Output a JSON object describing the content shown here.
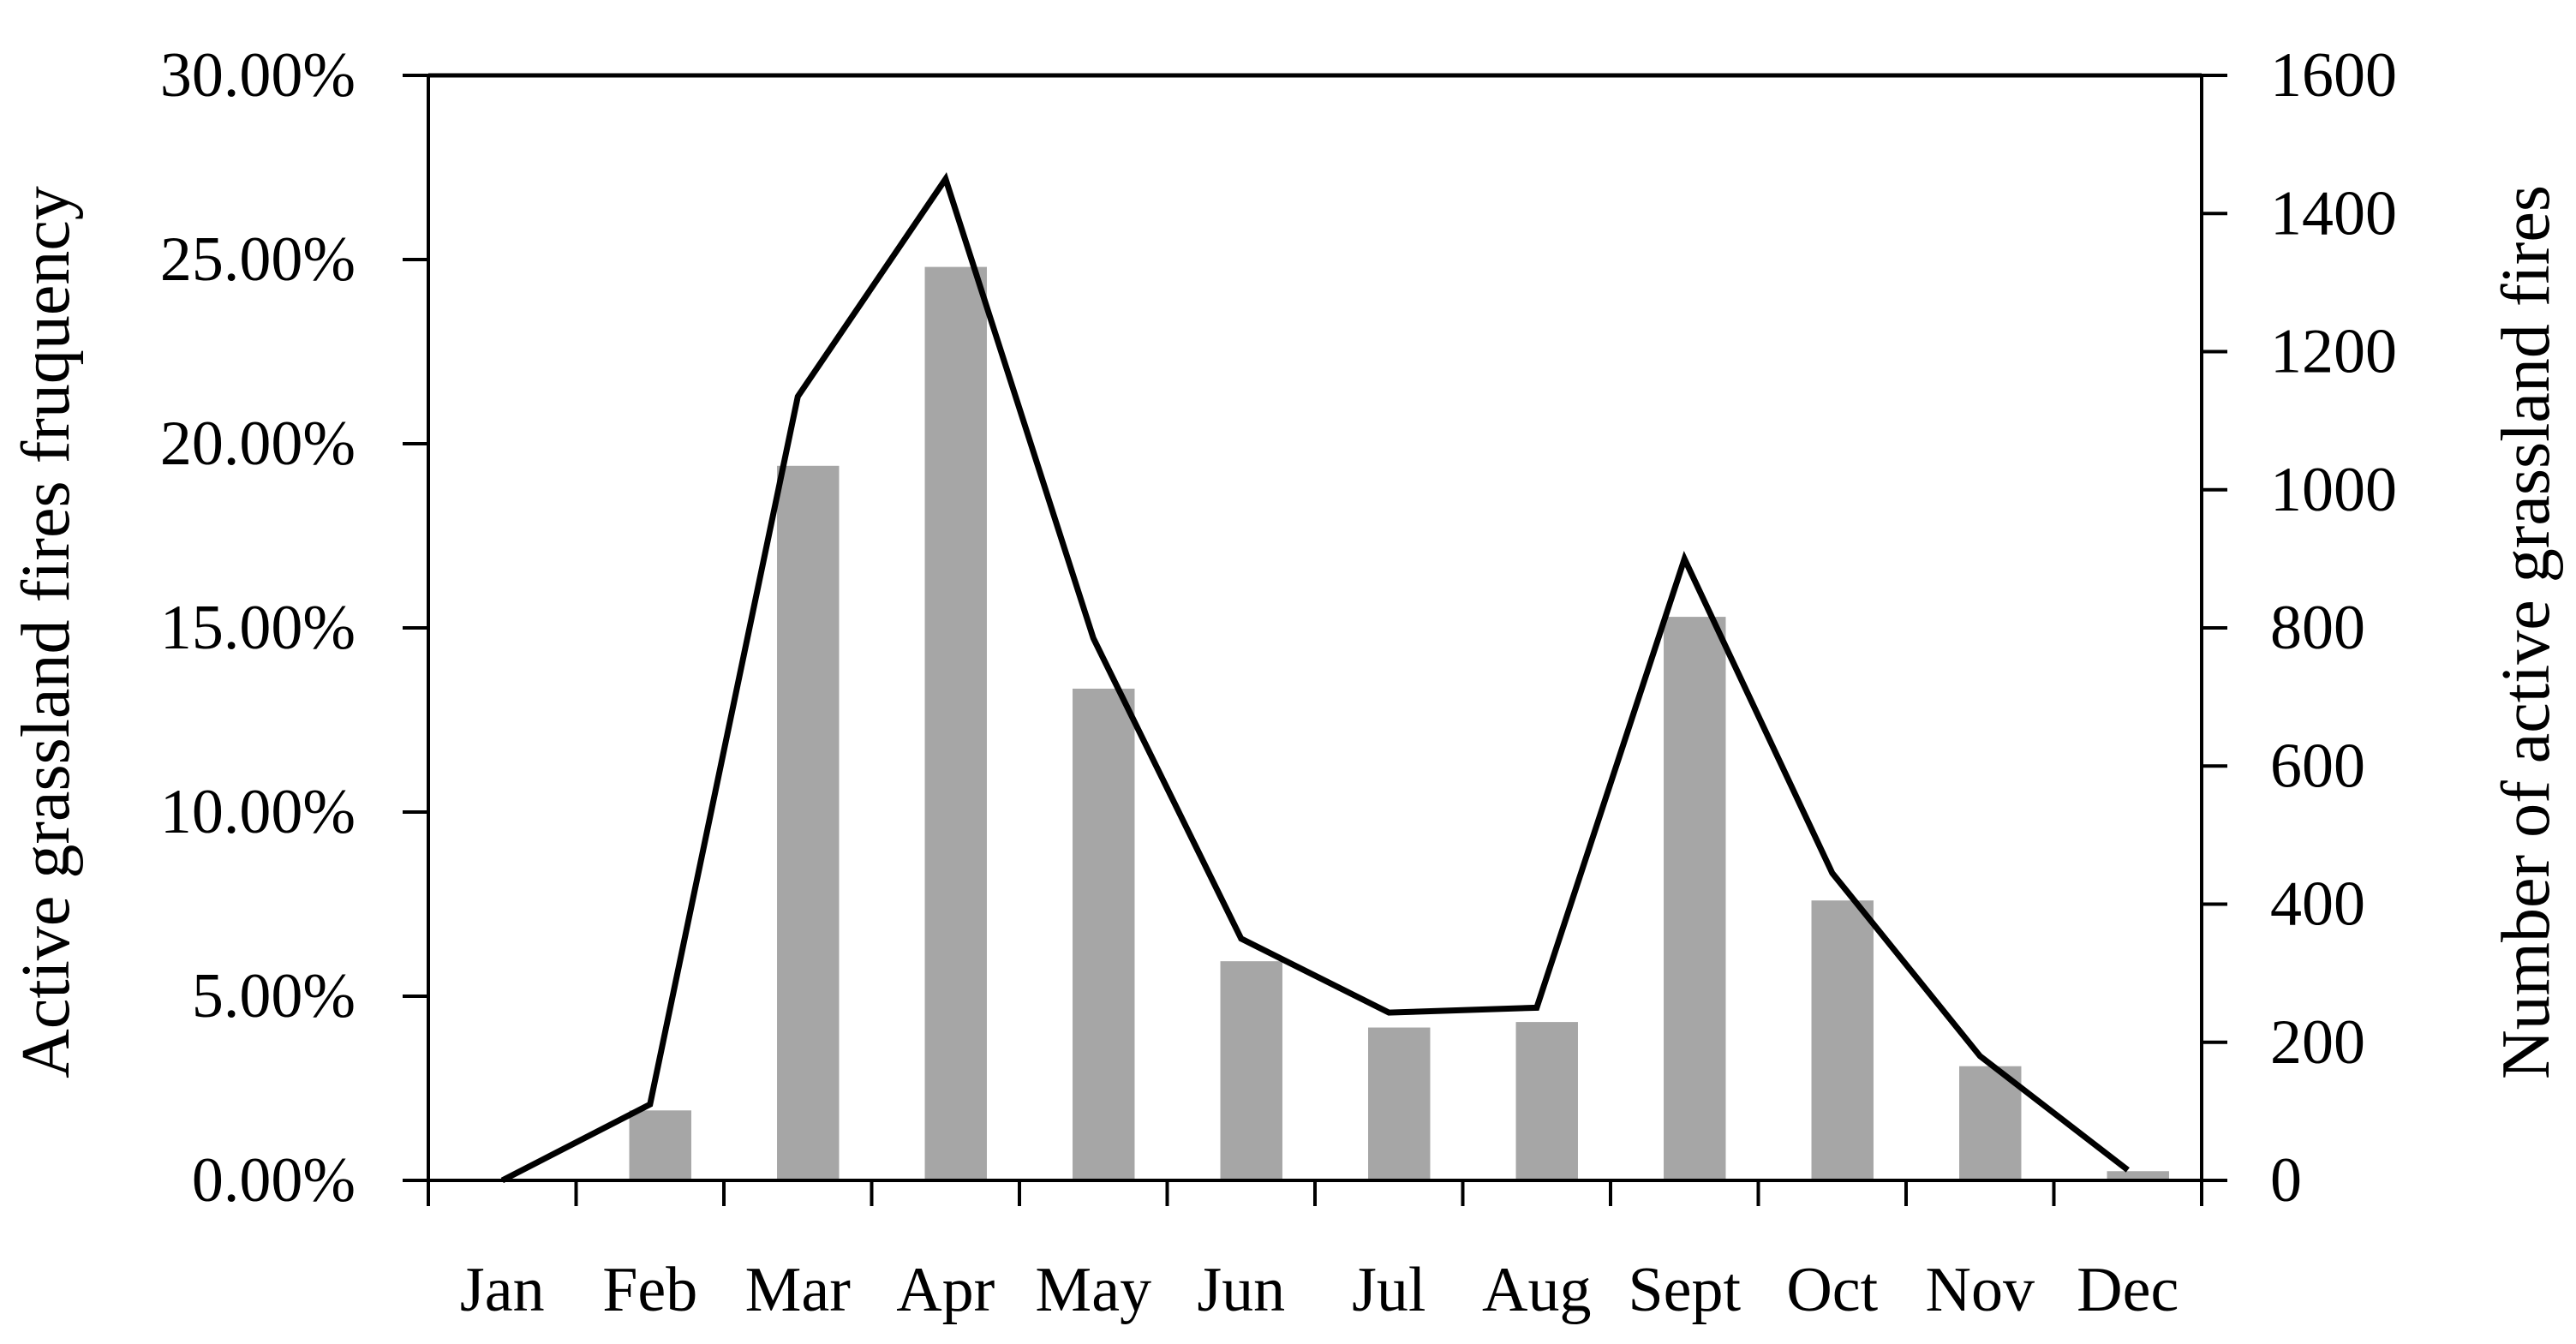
{
  "chart_data": {
    "type": "bar",
    "categories": [
      "Jan",
      "Feb",
      "Mar",
      "Apr",
      "May",
      "Jun",
      "Jul",
      "Aug",
      "Sept",
      "Oct",
      "Nov",
      "Dec"
    ],
    "series": [
      {
        "type": "bar",
        "axis": "left",
        "values": [
          0.0,
          1.9,
          19.4,
          24.8,
          13.35,
          5.95,
          4.15,
          4.3,
          15.3,
          7.6,
          3.1,
          0.25
        ]
      },
      {
        "type": "line",
        "axis": "right",
        "values": [
          0,
          110,
          1135,
          1450,
          785,
          350,
          243,
          250,
          900,
          445,
          180,
          15
        ]
      }
    ],
    "ylabel": "Active grassland fires fruquency",
    "y2label": "Number of active grassland fires",
    "ylim": [
      0,
      30
    ],
    "y2lim": [
      0,
      1600
    ],
    "yticks": [
      "0.00%",
      "5.00%",
      "10.00%",
      "15.00%",
      "20.00%",
      "25.00%",
      "30.00%"
    ],
    "y2ticks": [
      "0",
      "200",
      "400",
      "600",
      "800",
      "1000",
      "1200",
      "1400",
      "1600"
    ],
    "grid": false,
    "legend": "none",
    "colors": {
      "bar": "#a6a6a6",
      "line": "#000000",
      "axis": "#000000"
    }
  }
}
